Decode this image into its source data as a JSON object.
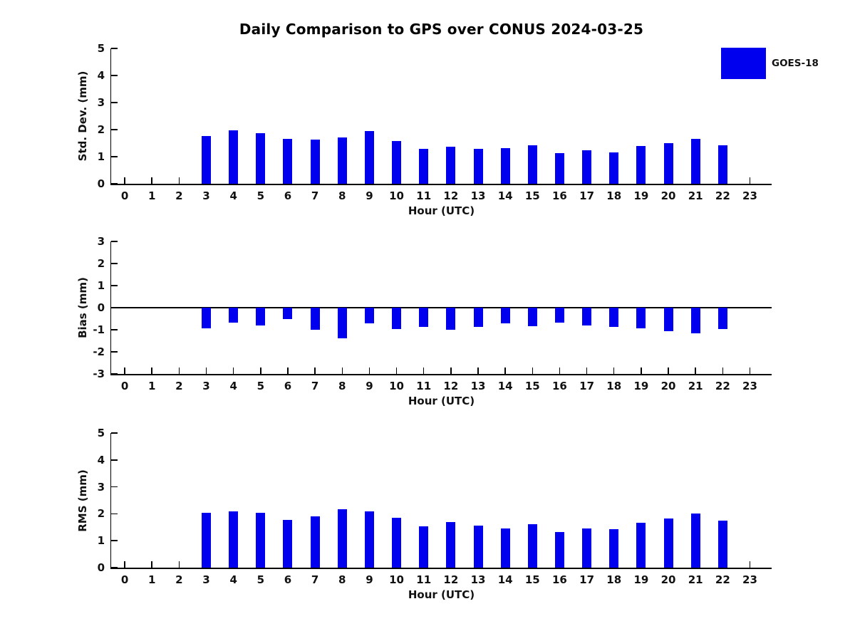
{
  "title": "Daily Comparison to GPS over CONUS 2024-03-25",
  "legend": {
    "label": "GOES-18",
    "color": "#0000ee"
  },
  "chart_data": [
    {
      "type": "bar",
      "series_name": "GOES-18",
      "ylabel": "Std. Dev. (mm)",
      "xlabel": "Hour (UTC)",
      "x": [
        3,
        4,
        5,
        6,
        7,
        8,
        9,
        10,
        11,
        12,
        13,
        14,
        15,
        16,
        17,
        18,
        19,
        20,
        21,
        22
      ],
      "values": [
        1.77,
        1.98,
        1.86,
        1.67,
        1.62,
        1.7,
        1.95,
        1.57,
        1.29,
        1.36,
        1.3,
        1.31,
        1.41,
        1.14,
        1.25,
        1.17,
        1.4,
        1.49,
        1.65,
        1.43
      ],
      "ylim": [
        0,
        5
      ],
      "yticks": [
        0,
        1,
        2,
        3,
        4,
        5
      ],
      "xticks": [
        0,
        1,
        2,
        3,
        4,
        5,
        6,
        7,
        8,
        9,
        10,
        11,
        12,
        13,
        14,
        15,
        16,
        17,
        18,
        19,
        20,
        21,
        22,
        23
      ],
      "xlim": [
        -0.5,
        23.8
      ],
      "zero_line": false,
      "grid": false,
      "legend_position": "upper-right-outside"
    },
    {
      "type": "bar",
      "series_name": "GOES-18",
      "ylabel": "Bias (mm)",
      "xlabel": "Hour (UTC)",
      "x": [
        3,
        4,
        5,
        6,
        7,
        8,
        9,
        10,
        11,
        12,
        13,
        14,
        15,
        16,
        17,
        18,
        19,
        20,
        21,
        22
      ],
      "values": [
        -0.93,
        -0.68,
        -0.82,
        -0.5,
        -1.01,
        -1.4,
        -0.72,
        -0.97,
        -0.86,
        -1.0,
        -0.88,
        -0.7,
        -0.85,
        -0.68,
        -0.8,
        -0.88,
        -0.93,
        -1.05,
        -1.15,
        -0.98
      ],
      "ylim": [
        -3,
        3
      ],
      "yticks": [
        -3,
        -2,
        -1,
        0,
        1,
        2,
        3
      ],
      "xticks": [
        0,
        1,
        2,
        3,
        4,
        5,
        6,
        7,
        8,
        9,
        10,
        11,
        12,
        13,
        14,
        15,
        16,
        17,
        18,
        19,
        20,
        21,
        22,
        23
      ],
      "xlim": [
        -0.5,
        23.8
      ],
      "zero_line": true,
      "grid": false
    },
    {
      "type": "bar",
      "series_name": "GOES-18",
      "ylabel": "RMS (mm)",
      "xlabel": "Hour (UTC)",
      "x": [
        3,
        4,
        5,
        6,
        7,
        8,
        9,
        10,
        11,
        12,
        13,
        14,
        15,
        16,
        17,
        18,
        19,
        20,
        21,
        22
      ],
      "values": [
        2.03,
        2.1,
        2.04,
        1.78,
        1.9,
        2.18,
        2.1,
        1.86,
        1.53,
        1.7,
        1.57,
        1.46,
        1.62,
        1.33,
        1.46,
        1.43,
        1.67,
        1.83,
        2.02,
        1.74
      ],
      "ylim": [
        0,
        5
      ],
      "yticks": [
        0,
        1,
        2,
        3,
        4,
        5
      ],
      "xticks": [
        0,
        1,
        2,
        3,
        4,
        5,
        6,
        7,
        8,
        9,
        10,
        11,
        12,
        13,
        14,
        15,
        16,
        17,
        18,
        19,
        20,
        21,
        22,
        23
      ],
      "xlim": [
        -0.5,
        23.8
      ],
      "zero_line": false,
      "grid": false
    }
  ]
}
